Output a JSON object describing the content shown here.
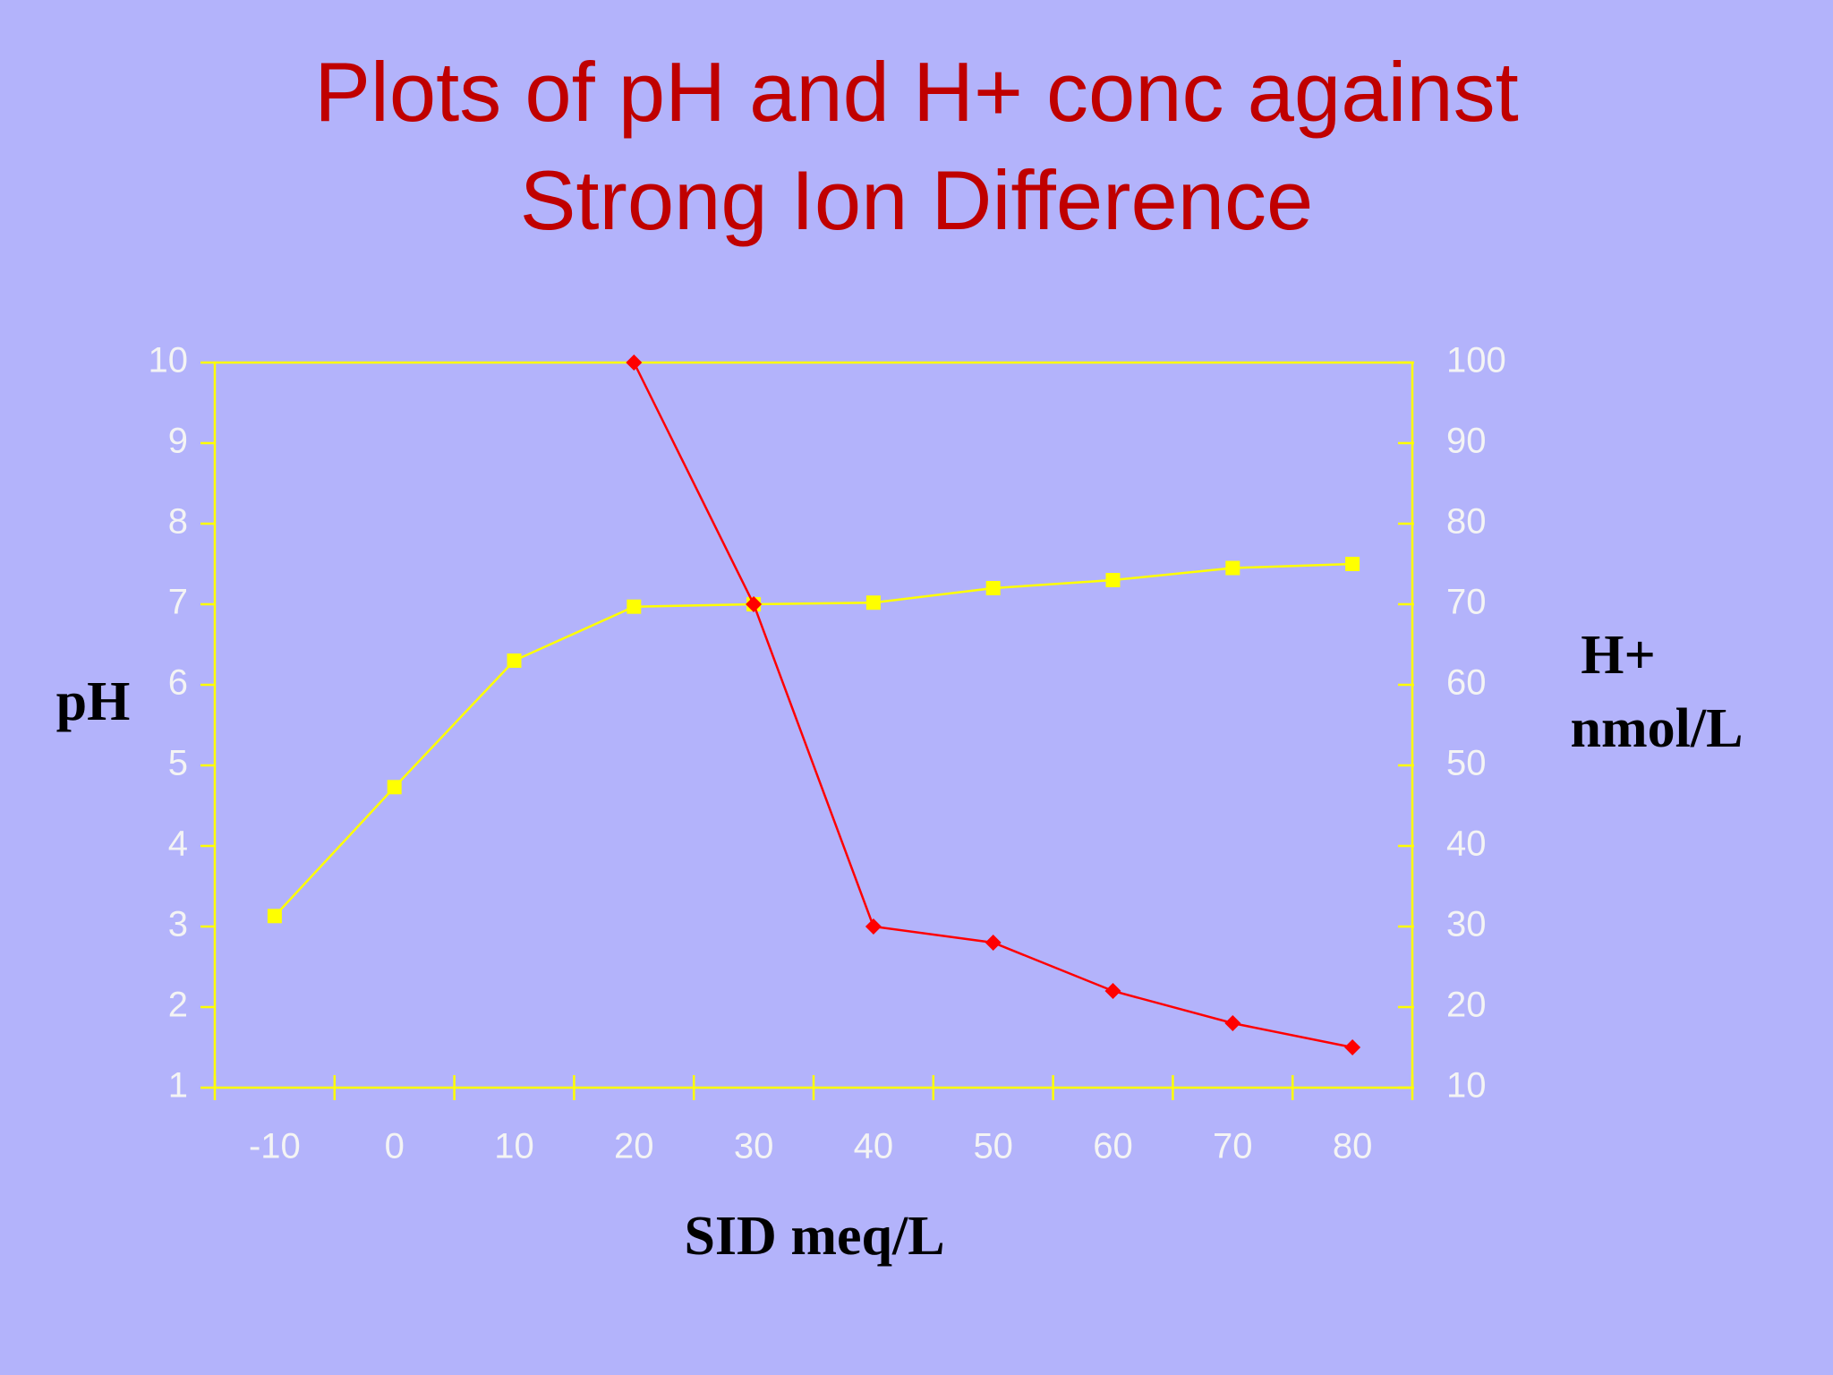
{
  "chart_data": {
    "type": "line",
    "title": [
      "Plots of pH and H+ conc against",
      "Strong Ion Difference"
    ],
    "x_label": "SID meq/L",
    "y_label": "pH",
    "y2_label": [
      "H+",
      "nmol/L"
    ],
    "categories": [
      "-10",
      "0",
      "10",
      "20",
      "30",
      "40",
      "50",
      "60",
      "70",
      "80"
    ],
    "series": [
      {
        "name": "pH",
        "color": "#ffff00",
        "marker": "square",
        "values": [
          3.13,
          4.73,
          6.3,
          6.97,
          7.0,
          7.02,
          7.2,
          7.3,
          7.45,
          7.5
        ]
      },
      {
        "name": "H+",
        "color": "#ff0000",
        "marker": "diamond",
        "axis": "y2",
        "values": [
          null,
          null,
          null,
          100,
          70,
          30,
          28,
          22,
          18,
          15
        ]
      }
    ],
    "ylim": [
      1,
      10
    ],
    "yticks": [
      1,
      2,
      3,
      4,
      5,
      6,
      7,
      8,
      9,
      10
    ],
    "y2lim": [
      10,
      100
    ],
    "y2ticks": [
      10,
      20,
      30,
      40,
      50,
      60,
      70,
      80,
      90,
      100
    ]
  }
}
